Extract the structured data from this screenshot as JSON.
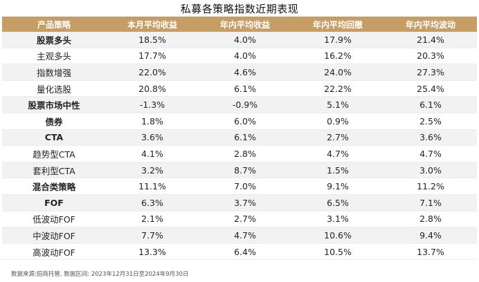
{
  "title": "私募各策略指数近期表现",
  "headers": [
    "产品策略",
    "本月平均收益",
    "年内平均收益",
    "年内平均回撤",
    "年内平均波动"
  ],
  "rows": [
    {
      "strategy": "股票多头",
      "bold": true,
      "values": [
        "18.5%",
        "4.0%",
        "17.9%",
        "21.4%"
      ]
    },
    {
      "strategy": "主观多头",
      "bold": false,
      "values": [
        "17.7%",
        "4.0%",
        "16.2%",
        "20.3%"
      ]
    },
    {
      "strategy": "指数增强",
      "bold": false,
      "values": [
        "22.0%",
        "4.6%",
        "24.0%",
        "27.3%"
      ]
    },
    {
      "strategy": "量化选股",
      "bold": false,
      "values": [
        "20.8%",
        "6.1%",
        "22.2%",
        "25.4%"
      ]
    },
    {
      "strategy": "股票市场中性",
      "bold": true,
      "values": [
        "-1.3%",
        "-0.9%",
        "5.1%",
        "6.1%"
      ]
    },
    {
      "strategy": "债券",
      "bold": true,
      "values": [
        "1.8%",
        "6.0%",
        "0.9%",
        "2.5%"
      ]
    },
    {
      "strategy": "CTA",
      "bold": true,
      "values": [
        "3.6%",
        "6.1%",
        "2.7%",
        "3.6%"
      ]
    },
    {
      "strategy": "趋势型CTA",
      "bold": false,
      "values": [
        "4.1%",
        "2.8%",
        "4.7%",
        "4.7%"
      ]
    },
    {
      "strategy": "套利型CTA",
      "bold": false,
      "values": [
        "3.2%",
        "8.7%",
        "1.5%",
        "3.0%"
      ]
    },
    {
      "strategy": "混合类策略",
      "bold": true,
      "values": [
        "11.1%",
        "7.0%",
        "9.1%",
        "11.2%"
      ]
    },
    {
      "strategy": "FOF",
      "bold": true,
      "values": [
        "6.3%",
        "3.7%",
        "6.5%",
        "7.1%"
      ]
    },
    {
      "strategy": "低波动FOF",
      "bold": false,
      "values": [
        "2.1%",
        "2.7%",
        "3.1%",
        "2.8%"
      ]
    },
    {
      "strategy": "中波动FOF",
      "bold": false,
      "values": [
        "7.7%",
        "4.7%",
        "10.6%",
        "9.4%"
      ]
    },
    {
      "strategy": "高波动FOF",
      "bold": false,
      "values": [
        "13.3%",
        "6.4%",
        "10.5%",
        "13.7%"
      ]
    }
  ],
  "note": "数据来源:招商托管, 数据区间: 2023年12月31日至2024年9月30日"
}
